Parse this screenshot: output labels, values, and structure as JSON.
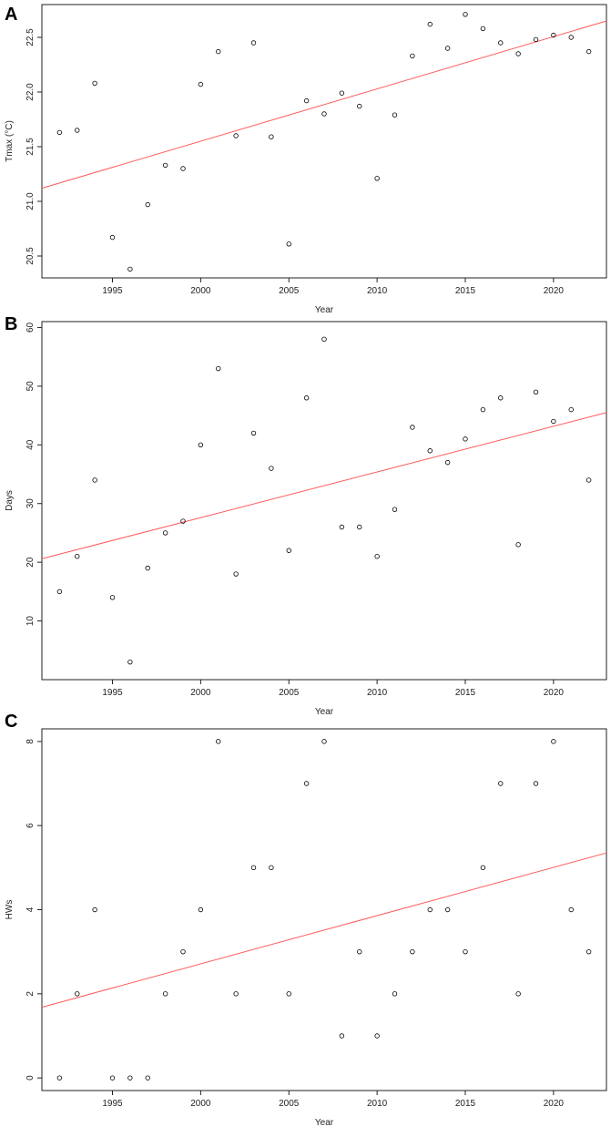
{
  "chart_data": [
    {
      "panel": "A",
      "type": "scatter",
      "xlabel": "Year",
      "ylabel": "Tmax (°C)",
      "xlim": [
        1991,
        2023
      ],
      "ylim": [
        20.3,
        22.8
      ],
      "xticks": [
        1995,
        2000,
        2005,
        2010,
        2015,
        2020
      ],
      "yticks": [
        20.5,
        21.0,
        21.5,
        22.0,
        22.5
      ],
      "ytick_labels": [
        "20.5",
        "21.0",
        "21.5",
        "22.0",
        "22.5"
      ],
      "trendline": {
        "color": "#ff5a5a",
        "points": [
          [
            1991,
            21.12
          ],
          [
            2023,
            22.65
          ]
        ]
      },
      "point_color": "#000000",
      "x": [
        1992,
        1993,
        1994,
        1995,
        1996,
        1997,
        1998,
        1999,
        2000,
        2001,
        2002,
        2003,
        2004,
        2005,
        2006,
        2007,
        2008,
        2009,
        2010,
        2011,
        2012,
        2013,
        2014,
        2015,
        2016,
        2017,
        2018,
        2019,
        2020,
        2021,
        2022
      ],
      "y": [
        21.63,
        21.65,
        22.08,
        20.67,
        20.38,
        20.97,
        21.33,
        21.3,
        22.07,
        22.37,
        21.6,
        22.45,
        21.59,
        20.61,
        21.92,
        21.8,
        21.99,
        21.87,
        21.21,
        21.79,
        22.33,
        22.62,
        22.4,
        22.71,
        22.58,
        22.45,
        22.35,
        22.48,
        22.52,
        22.5,
        22.37
      ]
    },
    {
      "panel": "B",
      "type": "scatter",
      "xlabel": "Year",
      "ylabel": "Days",
      "xlim": [
        1991,
        2023
      ],
      "ylim": [
        0,
        61
      ],
      "xticks": [
        1995,
        2000,
        2005,
        2010,
        2015,
        2020
      ],
      "yticks": [
        10,
        20,
        30,
        40,
        50,
        60
      ],
      "ytick_labels": [
        "10",
        "20",
        "30",
        "40",
        "50",
        "60"
      ],
      "trendline": {
        "color": "#ff5a5a",
        "points": [
          [
            1991,
            20.6
          ],
          [
            2023,
            45.5
          ]
        ]
      },
      "point_color": "#000000",
      "x": [
        1992,
        1993,
        1994,
        1995,
        1996,
        1997,
        1998,
        1999,
        2000,
        2001,
        2002,
        2003,
        2004,
        2005,
        2006,
        2007,
        2008,
        2009,
        2010,
        2011,
        2012,
        2013,
        2014,
        2015,
        2016,
        2017,
        2018,
        2019,
        2020,
        2021,
        2022
      ],
      "y": [
        15,
        21,
        34,
        14,
        3,
        19,
        25,
        27,
        40,
        53,
        18,
        42,
        36,
        22,
        48,
        58,
        26,
        26,
        21,
        29,
        43,
        39,
        37,
        41,
        46,
        48,
        23,
        49,
        44,
        46,
        34
      ]
    },
    {
      "panel": "C",
      "type": "scatter",
      "xlabel": "Year",
      "ylabel": "HWs",
      "xlim": [
        1991,
        2023
      ],
      "ylim": [
        -0.3,
        8.3
      ],
      "xticks": [
        1995,
        2000,
        2005,
        2010,
        2015,
        2020
      ],
      "yticks": [
        0,
        2,
        4,
        6,
        8
      ],
      "ytick_labels": [
        "0",
        "2",
        "4",
        "6",
        "8"
      ],
      "trendline": {
        "color": "#ff5a5a",
        "points": [
          [
            1991,
            1.68
          ],
          [
            2023,
            5.35
          ]
        ]
      },
      "point_color": "#000000",
      "x": [
        1992,
        1993,
        1994,
        1995,
        1996,
        1997,
        1998,
        1999,
        2000,
        2001,
        2002,
        2003,
        2004,
        2005,
        2006,
        2007,
        2008,
        2009,
        2010,
        2011,
        2012,
        2013,
        2014,
        2015,
        2016,
        2017,
        2018,
        2019,
        2020,
        2021,
        2022
      ],
      "y": [
        0,
        2,
        4,
        0,
        0,
        0,
        2,
        3,
        4,
        8,
        2,
        5,
        5,
        2,
        7,
        8,
        1,
        3,
        1,
        2,
        3,
        4,
        4,
        3,
        5,
        7,
        2,
        7,
        8,
        4,
        3
      ]
    }
  ]
}
